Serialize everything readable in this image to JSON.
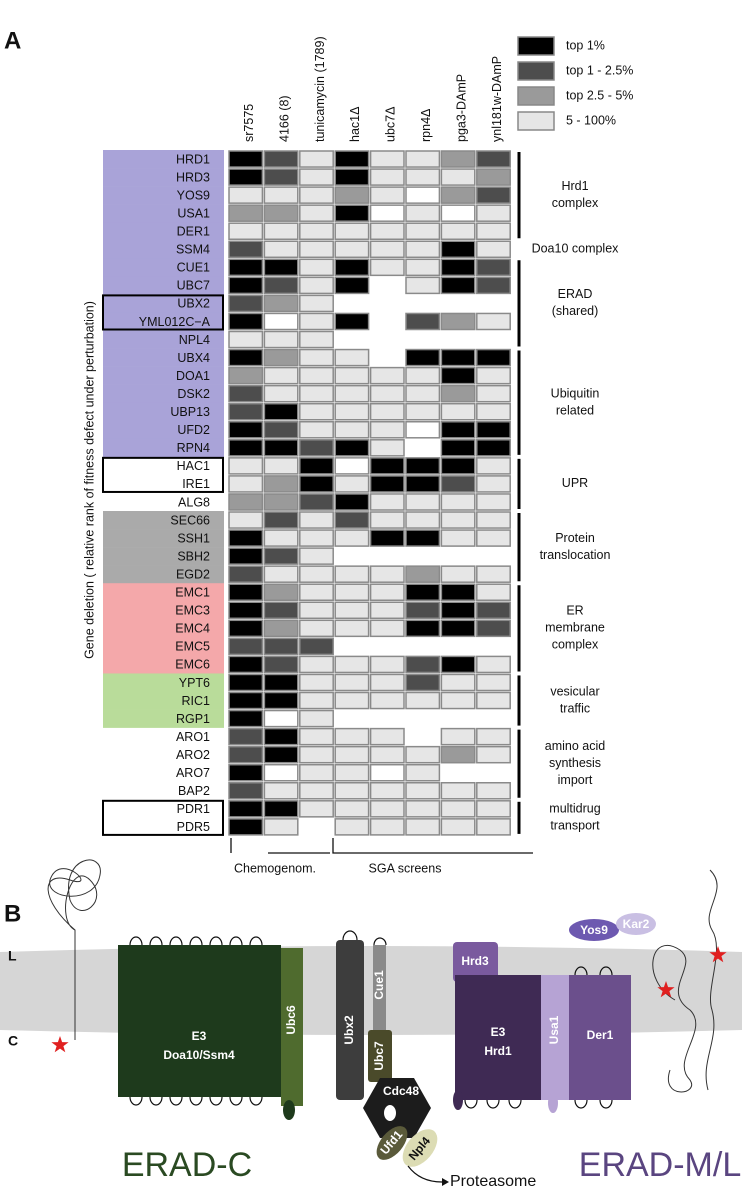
{
  "panel_labels": [
    "A",
    "B"
  ],
  "heatmap": {
    "columns": [
      "sr7575",
      "4166 (8)",
      "tunicamycin (1789)",
      "hac1Δ",
      "ubc7Δ",
      "rpn4Δ",
      "pga3-DAmP",
      "ynl181w-DAmP"
    ],
    "level_colors": [
      "#ffffff",
      "#000000",
      "#4d4d4d",
      "#9a9a9a",
      "#e6e6e6"
    ],
    "legend": [
      "top 1%",
      "top 1 - 2.5%",
      "top 2.5 - 5%",
      "5 - 100%"
    ],
    "y_axis_label": "Gene deletion ( relative rank of fitness defect under perturbation)",
    "bottom_labels": [
      "Chemogenom.",
      "SGA screens"
    ],
    "sections": [
      {
        "label": [
          "Hrd1",
          "complex"
        ],
        "rows": [
          {
            "gene": "HRD1",
            "highlight": "#a9a3d8",
            "boxed": false,
            "cells": [
              1,
              2,
              4,
              1,
              4,
              4,
              3,
              2
            ]
          },
          {
            "gene": "HRD3",
            "highlight": "#a9a3d8",
            "boxed": false,
            "cells": [
              1,
              2,
              4,
              1,
              4,
              4,
              4,
              3
            ]
          },
          {
            "gene": "YOS9",
            "highlight": "#a9a3d8",
            "boxed": false,
            "cells": [
              4,
              4,
              4,
              3,
              4,
              0,
              3,
              2
            ]
          },
          {
            "gene": "USA1",
            "highlight": "#a9a3d8",
            "boxed": false,
            "cells": [
              3,
              3,
              4,
              1,
              0,
              4,
              0,
              4
            ]
          },
          {
            "gene": "DER1",
            "highlight": "#a9a3d8",
            "boxed": false,
            "cells": [
              4,
              4,
              4,
              4,
              4,
              4,
              4,
              4
            ]
          }
        ]
      },
      {
        "label": [
          "Doa10 complex"
        ],
        "rows": [
          {
            "gene": "SSM4",
            "highlight": "#a9a3d8",
            "boxed": false,
            "cells": [
              2,
              4,
              4,
              4,
              4,
              4,
              1,
              4
            ]
          }
        ]
      },
      {
        "label": [
          "ERAD",
          "(shared)"
        ],
        "rows": [
          {
            "gene": "CUE1",
            "highlight": "#a9a3d8",
            "boxed": false,
            "cells": [
              1,
              1,
              4,
              1,
              4,
              4,
              1,
              2
            ]
          },
          {
            "gene": "UBC7",
            "highlight": "#a9a3d8",
            "boxed": false,
            "cells": [
              1,
              2,
              4,
              1,
              null,
              4,
              1,
              2
            ]
          },
          {
            "gene": "UBX2",
            "highlight": "#a9a3d8",
            "boxed": true,
            "cells": [
              2,
              3,
              4,
              null,
              null,
              null,
              null,
              null
            ]
          },
          {
            "gene": "YML012C−A",
            "highlight": "#a9a3d8",
            "boxed": true,
            "cells": [
              1,
              0,
              4,
              1,
              null,
              2,
              3,
              4
            ]
          },
          {
            "gene": "NPL4",
            "highlight": "#a9a3d8",
            "boxed": false,
            "cells": [
              4,
              4,
              4,
              null,
              null,
              null,
              null,
              null
            ]
          }
        ]
      },
      {
        "label": [
          "Ubiquitin",
          "related"
        ],
        "rows": [
          {
            "gene": "UBX4",
            "highlight": "#a9a3d8",
            "boxed": false,
            "cells": [
              1,
              3,
              4,
              4,
              null,
              1,
              1,
              1
            ]
          },
          {
            "gene": "DOA1",
            "highlight": "#a9a3d8",
            "boxed": false,
            "cells": [
              3,
              4,
              4,
              4,
              4,
              4,
              1,
              4
            ]
          },
          {
            "gene": "DSK2",
            "highlight": "#a9a3d8",
            "boxed": false,
            "cells": [
              2,
              4,
              4,
              4,
              4,
              4,
              3,
              4
            ]
          },
          {
            "gene": "UBP13",
            "highlight": "#a9a3d8",
            "boxed": false,
            "cells": [
              2,
              1,
              4,
              4,
              4,
              4,
              4,
              4
            ]
          },
          {
            "gene": "UFD2",
            "highlight": "#a9a3d8",
            "boxed": false,
            "cells": [
              1,
              2,
              4,
              4,
              4,
              0,
              1,
              1
            ]
          },
          {
            "gene": "RPN4",
            "highlight": "#a9a3d8",
            "boxed": false,
            "cells": [
              1,
              1,
              2,
              1,
              4,
              null,
              1,
              1
            ]
          }
        ]
      },
      {
        "label": [
          "UPR"
        ],
        "rows": [
          {
            "gene": "HAC1",
            "highlight": null,
            "boxed": true,
            "cells": [
              4,
              4,
              1,
              0,
              1,
              1,
              1,
              4
            ]
          },
          {
            "gene": "IRE1",
            "highlight": null,
            "boxed": true,
            "cells": [
              4,
              3,
              1,
              4,
              1,
              1,
              2,
              4
            ]
          },
          {
            "gene": "ALG8",
            "highlight": null,
            "boxed": false,
            "cells": [
              3,
              3,
              2,
              1,
              4,
              4,
              4,
              4
            ]
          }
        ]
      },
      {
        "label": [
          "Protein",
          "translocation"
        ],
        "rows": [
          {
            "gene": "SEC66",
            "highlight": "#aaaaaa",
            "boxed": false,
            "cells": [
              4,
              2,
              4,
              2,
              4,
              4,
              4,
              4
            ]
          },
          {
            "gene": "SSH1",
            "highlight": "#aaaaaa",
            "boxed": false,
            "cells": [
              1,
              4,
              4,
              4,
              1,
              1,
              4,
              4
            ]
          },
          {
            "gene": "SBH2",
            "highlight": "#aaaaaa",
            "boxed": false,
            "cells": [
              1,
              2,
              4,
              null,
              null,
              null,
              null,
              null
            ]
          },
          {
            "gene": "EGD2",
            "highlight": "#aaaaaa",
            "boxed": false,
            "cells": [
              2,
              4,
              4,
              4,
              4,
              3,
              4,
              4
            ]
          }
        ]
      },
      {
        "label": [
          "ER",
          "membrane",
          "complex"
        ],
        "rows": [
          {
            "gene": "EMC1",
            "highlight": "#f4a8aa",
            "boxed": false,
            "cells": [
              1,
              3,
              4,
              4,
              4,
              1,
              1,
              4
            ]
          },
          {
            "gene": "EMC3",
            "highlight": "#f4a8aa",
            "boxed": false,
            "cells": [
              1,
              2,
              4,
              4,
              4,
              2,
              1,
              2
            ]
          },
          {
            "gene": "EMC4",
            "highlight": "#f4a8aa",
            "boxed": false,
            "cells": [
              1,
              3,
              4,
              4,
              4,
              1,
              1,
              2
            ]
          },
          {
            "gene": "EMC5",
            "highlight": "#f4a8aa",
            "boxed": false,
            "cells": [
              2,
              2,
              2,
              null,
              null,
              null,
              null,
              null
            ]
          },
          {
            "gene": "EMC6",
            "highlight": "#f4a8aa",
            "boxed": false,
            "cells": [
              1,
              2,
              4,
              4,
              4,
              2,
              1,
              4
            ]
          }
        ]
      },
      {
        "label": [
          "vesicular",
          "traffic"
        ],
        "rows": [
          {
            "gene": "YPT6",
            "highlight": "#b9dc9a",
            "boxed": false,
            "cells": [
              1,
              1,
              4,
              4,
              4,
              2,
              4,
              4
            ]
          },
          {
            "gene": "RIC1",
            "highlight": "#b9dc9a",
            "boxed": false,
            "cells": [
              1,
              1,
              4,
              4,
              4,
              4,
              4,
              4
            ]
          },
          {
            "gene": "RGP1",
            "highlight": "#b9dc9a",
            "boxed": false,
            "cells": [
              1,
              0,
              4,
              null,
              null,
              null,
              null,
              null
            ]
          }
        ]
      },
      {
        "label": [
          "amino acid",
          "synthesis",
          "import"
        ],
        "rows": [
          {
            "gene": "ARO1",
            "highlight": null,
            "boxed": false,
            "cells": [
              2,
              1,
              4,
              4,
              4,
              null,
              4,
              4
            ]
          },
          {
            "gene": "ARO2",
            "highlight": null,
            "boxed": false,
            "cells": [
              2,
              1,
              4,
              4,
              4,
              4,
              3,
              4
            ]
          },
          {
            "gene": "ARO7",
            "highlight": null,
            "boxed": false,
            "cells": [
              1,
              0,
              4,
              4,
              0,
              4,
              null,
              null
            ]
          },
          {
            "gene": "BAP2",
            "highlight": null,
            "boxed": false,
            "cells": [
              2,
              4,
              4,
              4,
              4,
              4,
              4,
              4
            ]
          }
        ]
      },
      {
        "label": [
          "multidrug",
          "transport"
        ],
        "rows": [
          {
            "gene": "PDR1",
            "highlight": null,
            "boxed": true,
            "cells": [
              1,
              1,
              4,
              4,
              4,
              4,
              4,
              4
            ]
          },
          {
            "gene": "PDR5",
            "highlight": null,
            "boxed": true,
            "cells": [
              1,
              4,
              null,
              4,
              4,
              4,
              4,
              4
            ]
          }
        ]
      }
    ]
  },
  "diagram": {
    "lumen": "L",
    "cytosol": "C",
    "doa10_e3": "E3",
    "doa10": "Doa10/Ssm4",
    "ubc6": "Ubc6",
    "ubx2": "Ubx2",
    "cue1": "Cue1",
    "ubc7": "Ubc7",
    "hrd3": "Hrd3",
    "hrd1_e3": "E3",
    "hrd1": "Hrd1",
    "usa1": "Usa1",
    "der1": "Der1",
    "yos9": "Yos9",
    "kar2": "Kar2",
    "cdc48": "Cdc48",
    "ufd1": "Ufd1",
    "npl4": "Npl4",
    "proteasome": "Proteasome",
    "erad_c": "ERAD-C",
    "erad_ml": "ERAD-M/L"
  }
}
